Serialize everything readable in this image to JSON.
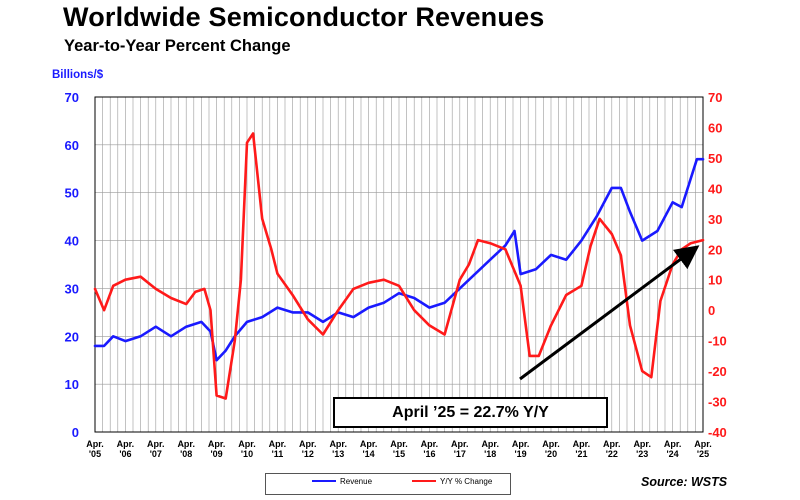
{
  "title": "Worldwide Semiconductor Revenues",
  "subtitle": "Year-to-Year Percent Change",
  "left_axis_unit": "Billions/$",
  "annotation": "April ’25 = 22.7% Y/Y",
  "source": "Source: WSTS",
  "colors": {
    "revenue": "#1a1aff",
    "yoy": "#ff1a1a",
    "axis": "#000000",
    "grid": "#9a9a9a",
    "arrow": "#000000"
  },
  "chart_data": {
    "type": "line",
    "title": "Worldwide Semiconductor Revenues",
    "subtitle": "Year-to-Year Percent Change",
    "grid": true,
    "legend_position": "bottom-center",
    "x_ticks": [
      [
        "Apr.",
        "'05"
      ],
      [
        "Apr.",
        "'06"
      ],
      [
        "Apr.",
        "'07"
      ],
      [
        "Apr.",
        "'08"
      ],
      [
        "Apr.",
        "'09"
      ],
      [
        "Apr.",
        "'10"
      ],
      [
        "Apr.",
        "'11"
      ],
      [
        "Apr.",
        "'12"
      ],
      [
        "Apr.",
        "'13"
      ],
      [
        "Apr.",
        "'14"
      ],
      [
        "Apr.",
        "'15"
      ],
      [
        "Apr.",
        "'16"
      ],
      [
        "Apr.",
        "'17"
      ],
      [
        "Apr.",
        "'18"
      ],
      [
        "Apr.",
        "'19"
      ],
      [
        "Apr.",
        "'20"
      ],
      [
        "Apr.",
        "'21"
      ],
      [
        "Apr.",
        "'22"
      ],
      [
        "Apr.",
        "'23"
      ],
      [
        "Apr.",
        "'24"
      ],
      [
        "Apr.",
        "'25"
      ]
    ],
    "x_range": [
      2005.0,
      2025.0
    ],
    "y_left": {
      "label": "Billions/$",
      "range": [
        0,
        70
      ],
      "ticks": [
        0,
        10,
        20,
        30,
        40,
        50,
        60,
        70
      ]
    },
    "y_right": {
      "label": "",
      "range": [
        -40,
        70
      ],
      "ticks": [
        -40,
        -30,
        -20,
        -10,
        0,
        10,
        20,
        30,
        40,
        50,
        60,
        70
      ]
    },
    "series": [
      {
        "name": "Revenue",
        "axis": "left",
        "x": [
          2005.0,
          2005.3,
          2005.6,
          2006.0,
          2006.5,
          2007.0,
          2007.5,
          2008.0,
          2008.5,
          2008.8,
          2009.0,
          2009.3,
          2009.6,
          2010.0,
          2010.5,
          2011.0,
          2011.5,
          2012.0,
          2012.5,
          2013.0,
          2013.5,
          2014.0,
          2014.5,
          2015.0,
          2015.5,
          2016.0,
          2016.5,
          2017.0,
          2017.5,
          2018.0,
          2018.5,
          2018.8,
          2019.0,
          2019.5,
          2020.0,
          2020.5,
          2021.0,
          2021.5,
          2022.0,
          2022.3,
          2022.6,
          2023.0,
          2023.5,
          2024.0,
          2024.3,
          2024.6,
          2024.8,
          2025.0
        ],
        "values": [
          18,
          18,
          20,
          19,
          20,
          22,
          20,
          22,
          23,
          21,
          15,
          17,
          20,
          23,
          24,
          26,
          25,
          25,
          23,
          25,
          24,
          26,
          27,
          29,
          28,
          26,
          27,
          30,
          33,
          36,
          39,
          42,
          33,
          34,
          37,
          36,
          40,
          45,
          51,
          51,
          46,
          40,
          42,
          48,
          47,
          53,
          57,
          57
        ]
      },
      {
        "name": "Y/Y % Change",
        "axis": "right",
        "x": [
          2005.0,
          2005.3,
          2005.6,
          2006.0,
          2006.5,
          2007.0,
          2007.5,
          2008.0,
          2008.3,
          2008.6,
          2008.8,
          2009.0,
          2009.3,
          2009.6,
          2009.8,
          2010.0,
          2010.2,
          2010.5,
          2010.8,
          2011.0,
          2011.5,
          2012.0,
          2012.5,
          2013.0,
          2013.5,
          2014.0,
          2014.5,
          2015.0,
          2015.5,
          2016.0,
          2016.5,
          2017.0,
          2017.3,
          2017.6,
          2018.0,
          2018.5,
          2019.0,
          2019.3,
          2019.6,
          2020.0,
          2020.5,
          2021.0,
          2021.3,
          2021.6,
          2022.0,
          2022.3,
          2022.6,
          2023.0,
          2023.3,
          2023.6,
          2024.0,
          2024.3,
          2024.6,
          2025.0
        ],
        "values": [
          7,
          0,
          8,
          10,
          11,
          7,
          4,
          2,
          6,
          7,
          0,
          -28,
          -29,
          -10,
          10,
          55,
          58,
          30,
          20,
          12,
          5,
          -3,
          -8,
          0,
          7,
          9,
          10,
          8,
          0,
          -5,
          -8,
          10,
          15,
          23,
          22,
          20,
          8,
          -15,
          -15,
          -5,
          5,
          8,
          21,
          30,
          25,
          18,
          -5,
          -20,
          -22,
          3,
          15,
          20,
          22,
          23
        ]
      }
    ],
    "annotation": "April ’25 = 22.7% Y/Y"
  },
  "legend": [
    {
      "label": "Revenue",
      "color": "#1a1aff"
    },
    {
      "label": "Y/Y % Change",
      "color": "#ff1a1a"
    }
  ]
}
